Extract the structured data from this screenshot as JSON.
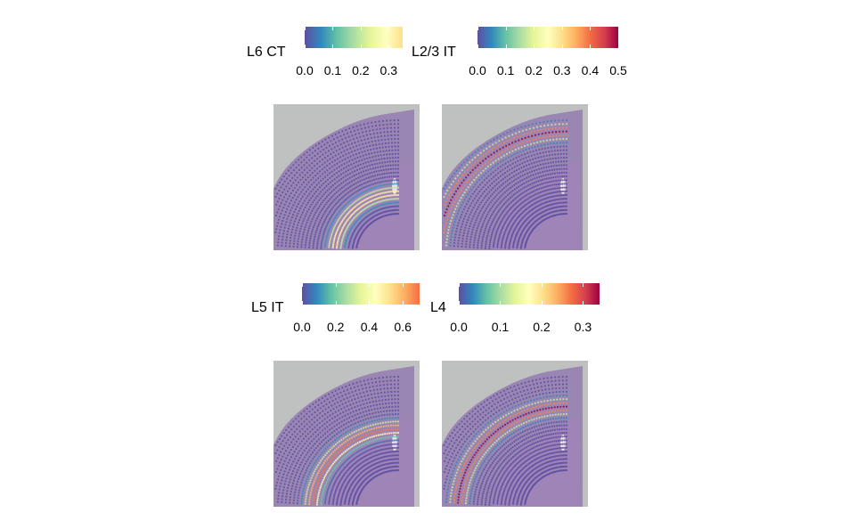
{
  "chart_data": [
    {
      "type": "heatmap",
      "title": "",
      "legend": {
        "title": "L6 CT",
        "placement": "top",
        "range": [
          0,
          0.35
        ],
        "ticks": [
          "0.0",
          "0.1",
          "0.2",
          "0.3"
        ],
        "tick_values": [
          0,
          0.1,
          0.2,
          0.3
        ]
      },
      "colormap": [
        "#5E4FA2",
        "#3288BD",
        "#66C2A5",
        "#ABDDA4",
        "#E6F598",
        "#FFFFBF",
        "#FEE08B"
      ],
      "band": {
        "layer": "deep",
        "peak": 0.35
      }
    },
    {
      "type": "heatmap",
      "title": "",
      "legend": {
        "title": "L2/3 IT",
        "placement": "top",
        "range": [
          0,
          0.5
        ],
        "ticks": [
          "0.0",
          "0.1",
          "0.2",
          "0.3",
          "0.4",
          "0.5"
        ],
        "tick_values": [
          0,
          0.1,
          0.2,
          0.3,
          0.4,
          0.5
        ]
      },
      "colormap": [
        "#5E4FA2",
        "#3288BD",
        "#66C2A5",
        "#ABDDA4",
        "#E6F598",
        "#FFFFBF",
        "#FEE08B",
        "#FDAE61",
        "#F46D43",
        "#D53E4F",
        "#9E0142"
      ],
      "band": {
        "layer": "superficial",
        "peak": 0.5
      }
    },
    {
      "type": "heatmap",
      "title": "",
      "legend": {
        "title": "L5 IT",
        "placement": "top",
        "range": [
          0,
          0.7
        ],
        "ticks": [
          "0.0",
          "0.2",
          "0.4",
          "0.6"
        ],
        "tick_values": [
          0,
          0.2,
          0.4,
          0.6
        ]
      },
      "colormap": [
        "#5E4FA2",
        "#3288BD",
        "#66C2A5",
        "#ABDDA4",
        "#E6F598",
        "#FFFFBF",
        "#FEE08B",
        "#FDAE61",
        "#F46D43"
      ],
      "band": {
        "layer": "middle",
        "peak": 0.7
      }
    },
    {
      "type": "heatmap",
      "title": "",
      "legend": {
        "title": "L4",
        "placement": "top",
        "range": [
          0,
          0.34
        ],
        "ticks": [
          "0.0",
          "0.1",
          "0.2",
          "0.3"
        ],
        "tick_values": [
          0,
          0.1,
          0.2,
          0.3
        ]
      },
      "colormap": [
        "#5E4FA2",
        "#3288BD",
        "#66C2A5",
        "#ABDDA4",
        "#E6F598",
        "#FFFFBF",
        "#FEE08B",
        "#FDAE61",
        "#F46D43",
        "#D53E4F",
        "#9E0142"
      ],
      "band": {
        "layer": "upper-middle",
        "peak": 0.34
      }
    }
  ]
}
